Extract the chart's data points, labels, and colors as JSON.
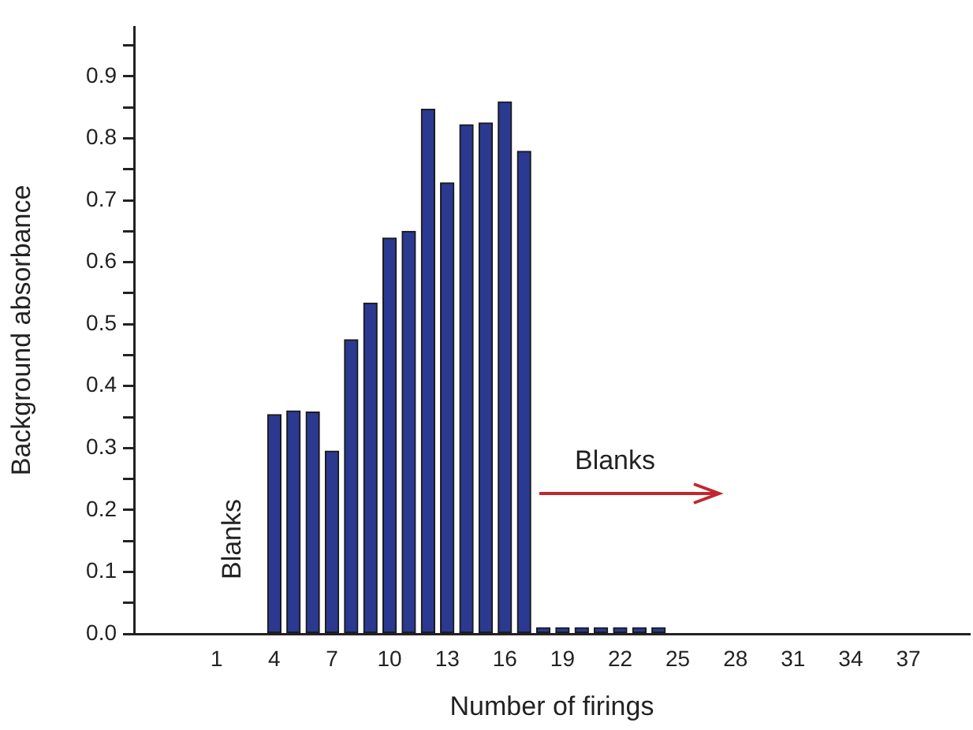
{
  "chart_data": {
    "type": "bar",
    "xlabel": "Number of firings",
    "ylabel": "Background absorbance",
    "x": [
      4,
      5,
      6,
      7,
      8,
      9,
      10,
      11,
      12,
      13,
      14,
      15,
      16,
      17,
      18,
      19,
      20,
      21,
      22,
      23,
      24
    ],
    "values": [
      0.354,
      0.36,
      0.358,
      0.295,
      0.475,
      0.534,
      0.639,
      0.65,
      0.847,
      0.728,
      0.822,
      0.825,
      0.859,
      0.779,
      0.01,
      0.01,
      0.01,
      0.01,
      0.01,
      0.01,
      0.01
    ],
    "color": "#2b3990",
    "xlim": [
      -3.3,
      40.2
    ],
    "xticks": [
      1,
      4,
      7,
      10,
      13,
      16,
      19,
      22,
      25,
      28,
      31,
      34,
      37
    ],
    "ylim": [
      0,
      0.98
    ],
    "yticks": [
      {
        "value": 0,
        "label": "0.0"
      },
      {
        "value": 0.05,
        "label": null
      },
      0.1,
      {
        "value": 0.15,
        "label": null
      },
      0.2,
      {
        "value": 0.25,
        "label": null
      },
      0.3,
      {
        "value": 0.35,
        "label": null
      },
      0.4,
      {
        "value": 0.45,
        "label": null
      },
      0.5,
      {
        "value": 0.55,
        "label": null
      },
      0.6,
      {
        "value": 0.65,
        "label": null
      },
      0.7,
      {
        "value": 0.75,
        "label": null
      },
      0.8,
      {
        "value": 0.85,
        "label": null
      },
      0.9,
      {
        "value": 0.95,
        "label": null
      }
    ],
    "annotations": [
      "Blanks",
      "Blanks"
    ],
    "grid": false,
    "legend": false
  }
}
